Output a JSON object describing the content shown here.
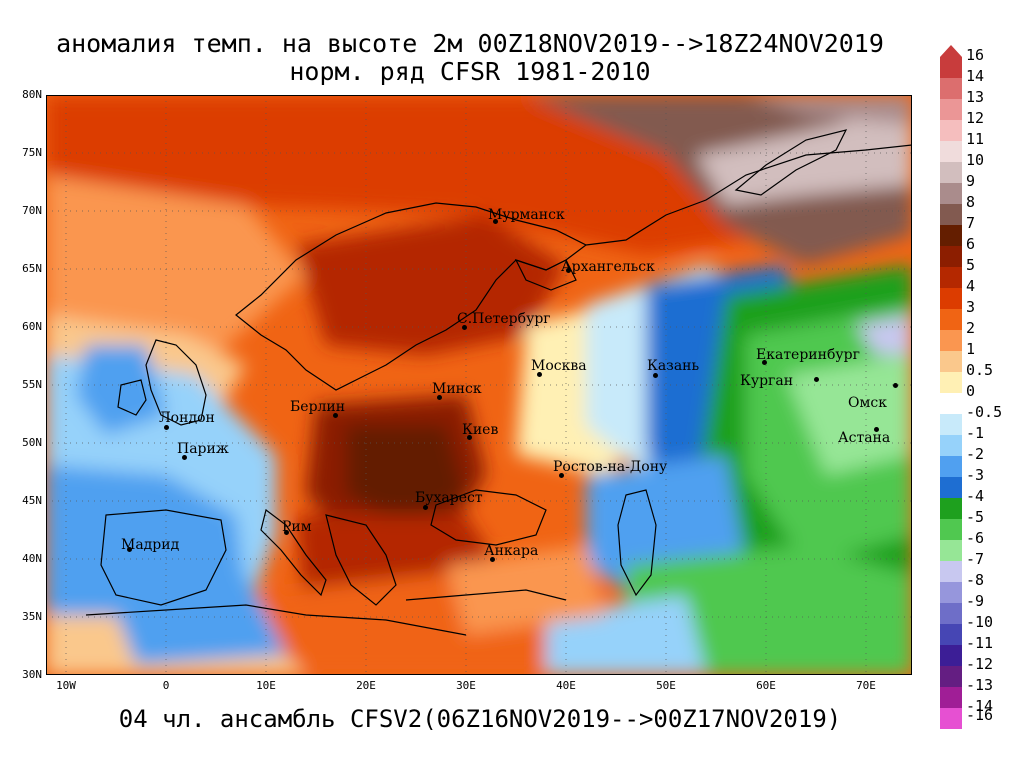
{
  "title_line1": "аномалия темп. на высоте 2м 00Z18NOV2019-->18Z24NOV2019",
  "title_line2": "норм. ряд CFSR 1981-2010",
  "subtitle": "04 чл. ансамбль CFSV2(06Z16NOV2019-->00Z17NOV2019)",
  "lat_labels": [
    "80N",
    "75N",
    "70N",
    "65N",
    "60N",
    "55N",
    "50N",
    "45N",
    "40N",
    "35N",
    "30N"
  ],
  "lon_labels": [
    "10W",
    "0",
    "10E",
    "20E",
    "30E",
    "40E",
    "50E",
    "60E",
    "70E"
  ],
  "cities": [
    {
      "name": "Мурманск"
    },
    {
      "name": "Архангельск"
    },
    {
      "name": "С.Петербург"
    },
    {
      "name": "Москва"
    },
    {
      "name": "Казань"
    },
    {
      "name": "Екатеринбург"
    },
    {
      "name": "Курган"
    },
    {
      "name": "Омск"
    },
    {
      "name": "Астана"
    },
    {
      "name": "Минск"
    },
    {
      "name": "Берлин"
    },
    {
      "name": "Лондон"
    },
    {
      "name": "Париж"
    },
    {
      "name": "Киев"
    },
    {
      "name": "Ростов-на-Дону"
    },
    {
      "name": "Бухарест"
    },
    {
      "name": "Рим"
    },
    {
      "name": "Мадрид"
    },
    {
      "name": "Анкара"
    }
  ],
  "colorbar": {
    "labels": [
      "16",
      "14",
      "13",
      "12",
      "11",
      "10",
      "9",
      "8",
      "7",
      "6",
      "5",
      "4",
      "3",
      "2",
      "1",
      "0.5",
      "0",
      "-0.5",
      "-1",
      "-2",
      "-3",
      "-4",
      "-5",
      "-6",
      "-7",
      "-8",
      "-9",
      "-10",
      "-11",
      "-12",
      "-13",
      "-14",
      "-16"
    ],
    "colors": [
      "#c83c3c",
      "#dc6e6e",
      "#eb9696",
      "#f5bebe",
      "#f0dcdc",
      "#d2bebe",
      "#aa8c8c",
      "#825a50",
      "#641e00",
      "#8c1e00",
      "#b42800",
      "#dc3c00",
      "#f06414",
      "#fa9650",
      "#fac88c",
      "#fff0b4",
      "#ffffff",
      "#c8eafa",
      "#96d2fa",
      "#50a0f0",
      "#1e6ed2",
      "#1ea01e",
      "#50c850",
      "#96e696",
      "#c8c8f0",
      "#9696dc",
      "#6e6ec8",
      "#4646b4",
      "#3c1e96",
      "#641e82",
      "#a01e96",
      "#e650d2"
    ]
  },
  "chart_data": {
    "type": "heatmap",
    "variable": "аномалия темп. на высоте 2м",
    "units_implied": "°C",
    "lon_range": [
      -12,
      75
    ],
    "lat_range": [
      30,
      80
    ],
    "scale_levels": [
      -16,
      -14,
      -13,
      -12,
      -11,
      -10,
      -9,
      -8,
      -7,
      -6,
      -5,
      -4,
      -3,
      -2,
      -1,
      -0.5,
      0,
      0.5,
      1,
      2,
      3,
      4,
      5,
      6,
      7,
      8,
      9,
      10,
      11,
      12,
      13,
      14,
      16
    ],
    "regions_approx": [
      {
        "area": "Eastern Europe / Ukraine / Balkans",
        "anomaly_range": [
          5,
          7
        ]
      },
      {
        "area": "Scandinavia / Baltic / NW Russia",
        "anomaly_range": [
          3,
          5
        ]
      },
      {
        "area": "Arctic Ocean north of 73N",
        "anomaly_range": [
          2,
          4
        ]
      },
      {
        "area": "Novaya Zemlya / Barents NE",
        "anomaly_range": [
          7,
          10
        ]
      },
      {
        "area": "Moscow – Volga region",
        "anomaly_range": [
          -1,
          0
        ]
      },
      {
        "area": "Western Siberia / Kazakhstan",
        "anomaly_range": [
          -6,
          -3
        ]
      },
      {
        "area": "Iberia / France / British Isles",
        "anomaly_range": [
          -2,
          -0.5
        ]
      },
      {
        "area": "North Africa / Middle East",
        "anomaly_range": [
          1,
          3
        ]
      }
    ]
  }
}
